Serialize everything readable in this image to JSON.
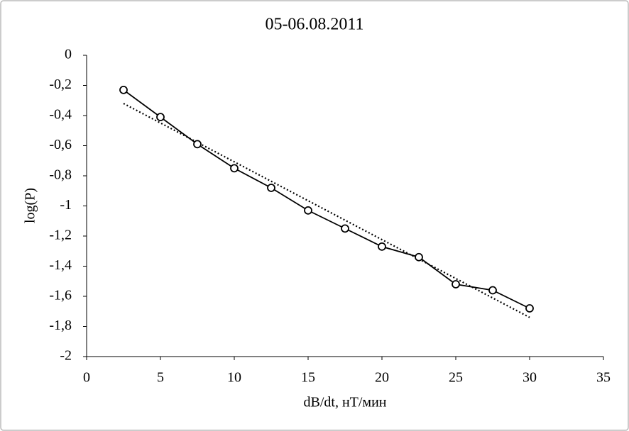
{
  "chart_data": {
    "type": "line",
    "title": "05-06.08.2011",
    "x_label": "dB/dt, нТ/мин",
    "y_label": "log(P)",
    "x": [
      2.5,
      5,
      7.5,
      10,
      12.5,
      15,
      17.5,
      20,
      22.5,
      25,
      27.5,
      30
    ],
    "series": [
      {
        "color": "#000000",
        "values": [
          -0.23,
          -0.41,
          -0.59,
          -0.75,
          -0.88,
          -1.03,
          -1.15,
          -1.27,
          -1.34,
          -1.52,
          -1.56,
          -1.68
        ]
      }
    ],
    "trendline": {
      "color": "#000000",
      "x": [
        2.5,
        30
      ],
      "values": [
        -0.32,
        -1.74
      ]
    },
    "xlim": [
      0,
      35
    ],
    "xticks": [
      0,
      5,
      10,
      15,
      20,
      25,
      30,
      35
    ],
    "ylim": [
      -2,
      0
    ],
    "yticks": [
      0,
      {
        "value": -0.2,
        "label": "-0,2"
      },
      {
        "value": -0.4,
        "label": "-0,4"
      },
      {
        "value": -0.6,
        "label": "-0,6"
      },
      {
        "value": -0.8,
        "label": "-0,8"
      },
      -1,
      {
        "value": -1.2,
        "label": "-1,2"
      },
      {
        "value": -1.4,
        "label": "-1,4"
      },
      {
        "value": -1.6,
        "label": "-1,6"
      },
      {
        "value": -1.8,
        "label": "-1,8"
      },
      -2
    ]
  }
}
